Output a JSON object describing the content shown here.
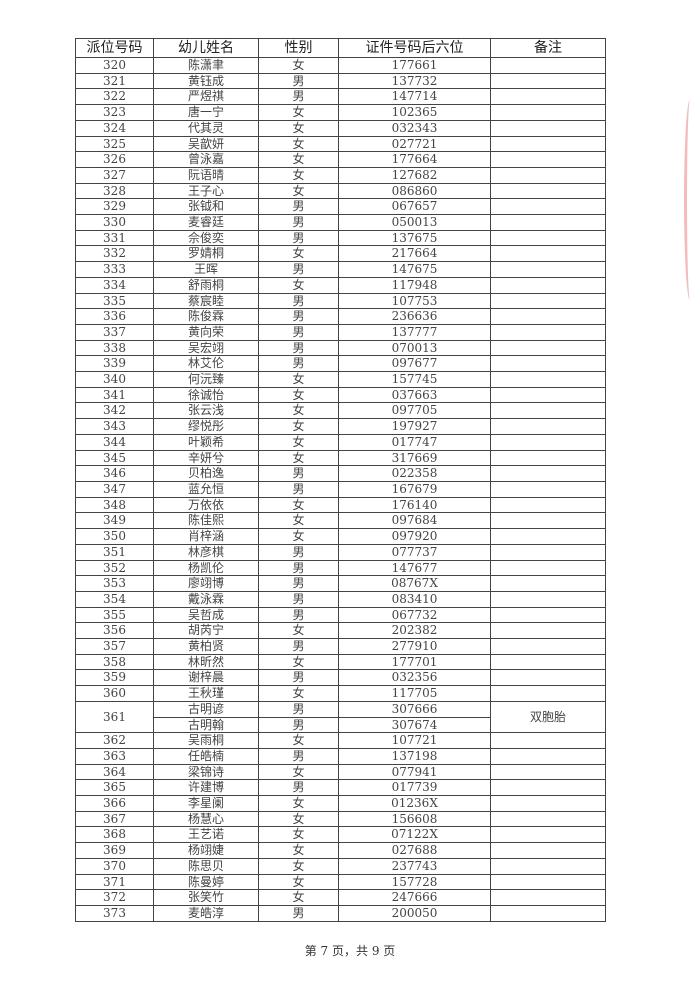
{
  "table": {
    "headers": [
      "派位号码",
      "幼儿姓名",
      "性别",
      "证件号码后六位",
      "备注"
    ],
    "rows": [
      {
        "no": "320",
        "kids": [
          [
            "陈潇聿",
            "女",
            "177661"
          ]
        ]
      },
      {
        "no": "321",
        "kids": [
          [
            "黄钰成",
            "男",
            "137732"
          ]
        ]
      },
      {
        "no": "322",
        "kids": [
          [
            "严煜祺",
            "男",
            "147714"
          ]
        ]
      },
      {
        "no": "323",
        "kids": [
          [
            "唐一宁",
            "女",
            "102365"
          ]
        ]
      },
      {
        "no": "324",
        "kids": [
          [
            "代其灵",
            "女",
            "032343"
          ]
        ]
      },
      {
        "no": "325",
        "kids": [
          [
            "吴歆妍",
            "女",
            "027721"
          ]
        ]
      },
      {
        "no": "326",
        "kids": [
          [
            "曾泳嘉",
            "女",
            "177664"
          ]
        ]
      },
      {
        "no": "327",
        "kids": [
          [
            "阮语晴",
            "女",
            "127682"
          ]
        ]
      },
      {
        "no": "328",
        "kids": [
          [
            "王子心",
            "女",
            "086860"
          ]
        ]
      },
      {
        "no": "329",
        "kids": [
          [
            "张钺和",
            "男",
            "067657"
          ]
        ]
      },
      {
        "no": "330",
        "kids": [
          [
            "麦睿廷",
            "男",
            "050013"
          ]
        ]
      },
      {
        "no": "331",
        "kids": [
          [
            "佘俊奕",
            "男",
            "137675"
          ]
        ]
      },
      {
        "no": "332",
        "kids": [
          [
            "罗婧桐",
            "女",
            "217664"
          ]
        ]
      },
      {
        "no": "333",
        "kids": [
          [
            "王晖",
            "男",
            "147675"
          ]
        ]
      },
      {
        "no": "334",
        "kids": [
          [
            "舒雨桐",
            "女",
            "117948"
          ]
        ]
      },
      {
        "no": "335",
        "kids": [
          [
            "蔡宸睦",
            "男",
            "107753"
          ]
        ]
      },
      {
        "no": "336",
        "kids": [
          [
            "陈俊霖",
            "男",
            "236636"
          ]
        ]
      },
      {
        "no": "337",
        "kids": [
          [
            "黄向荣",
            "男",
            "137777"
          ]
        ]
      },
      {
        "no": "338",
        "kids": [
          [
            "吴宏翊",
            "男",
            "070013"
          ]
        ]
      },
      {
        "no": "339",
        "kids": [
          [
            "林艾伦",
            "男",
            "097677"
          ]
        ]
      },
      {
        "no": "340",
        "kids": [
          [
            "何沅臻",
            "女",
            "157745"
          ]
        ]
      },
      {
        "no": "341",
        "kids": [
          [
            "徐诚怡",
            "女",
            "037663"
          ]
        ]
      },
      {
        "no": "342",
        "kids": [
          [
            "张云浅",
            "女",
            "097705"
          ]
        ]
      },
      {
        "no": "343",
        "kids": [
          [
            "缪悦彤",
            "女",
            "197927"
          ]
        ]
      },
      {
        "no": "344",
        "kids": [
          [
            "叶颖希",
            "女",
            "017747"
          ]
        ]
      },
      {
        "no": "345",
        "kids": [
          [
            "辛妍兮",
            "女",
            "317669"
          ]
        ]
      },
      {
        "no": "346",
        "kids": [
          [
            "贝柏逸",
            "男",
            "022358"
          ]
        ]
      },
      {
        "no": "347",
        "kids": [
          [
            "蓝允恒",
            "男",
            "167679"
          ]
        ]
      },
      {
        "no": "348",
        "kids": [
          [
            "万依依",
            "女",
            "176140"
          ]
        ]
      },
      {
        "no": "349",
        "kids": [
          [
            "陈佳熙",
            "女",
            "097684"
          ]
        ]
      },
      {
        "no": "350",
        "kids": [
          [
            "肖梓涵",
            "女",
            "097920"
          ]
        ]
      },
      {
        "no": "351",
        "kids": [
          [
            "林彦棋",
            "男",
            "077737"
          ]
        ]
      },
      {
        "no": "352",
        "kids": [
          [
            "杨凯伦",
            "男",
            "147677"
          ]
        ]
      },
      {
        "no": "353",
        "kids": [
          [
            "廖翊博",
            "男",
            "08767X"
          ]
        ]
      },
      {
        "no": "354",
        "kids": [
          [
            "戴泳霖",
            "男",
            "083410"
          ]
        ]
      },
      {
        "no": "355",
        "kids": [
          [
            "吴哲成",
            "男",
            "067732"
          ]
        ]
      },
      {
        "no": "356",
        "kids": [
          [
            "胡芮宁",
            "女",
            "202382"
          ]
        ]
      },
      {
        "no": "357",
        "kids": [
          [
            "黄柏贤",
            "男",
            "277910"
          ]
        ]
      },
      {
        "no": "358",
        "kids": [
          [
            "林昕然",
            "女",
            "177701"
          ]
        ]
      },
      {
        "no": "359",
        "kids": [
          [
            "谢梓晨",
            "男",
            "032356"
          ]
        ]
      },
      {
        "no": "360",
        "kids": [
          [
            "王秋瑾",
            "女",
            "117705"
          ]
        ]
      },
      {
        "no": "361",
        "kids": [
          [
            "古明谚",
            "男",
            "307666"
          ],
          [
            "古明翰",
            "男",
            "307674"
          ]
        ],
        "note": "双胞胎"
      },
      {
        "no": "362",
        "kids": [
          [
            "吴雨桐",
            "女",
            "107721"
          ]
        ]
      },
      {
        "no": "363",
        "kids": [
          [
            "任皓楠",
            "男",
            "137198"
          ]
        ]
      },
      {
        "no": "364",
        "kids": [
          [
            "梁锦诗",
            "女",
            "077941"
          ]
        ]
      },
      {
        "no": "365",
        "kids": [
          [
            "许建博",
            "男",
            "017739"
          ]
        ]
      },
      {
        "no": "366",
        "kids": [
          [
            "李星阑",
            "女",
            "01236X"
          ]
        ]
      },
      {
        "no": "367",
        "kids": [
          [
            "杨慧心",
            "女",
            "156608"
          ]
        ]
      },
      {
        "no": "368",
        "kids": [
          [
            "王艺诺",
            "女",
            "07122X"
          ]
        ]
      },
      {
        "no": "369",
        "kids": [
          [
            "杨翊婕",
            "女",
            "027688"
          ]
        ]
      },
      {
        "no": "370",
        "kids": [
          [
            "陈思贝",
            "女",
            "237743"
          ]
        ]
      },
      {
        "no": "371",
        "kids": [
          [
            "陈曼婷",
            "女",
            "157728"
          ]
        ]
      },
      {
        "no": "372",
        "kids": [
          [
            "张笑竹",
            "女",
            "247666"
          ]
        ]
      },
      {
        "no": "373",
        "kids": [
          [
            "麦皓淳",
            "男",
            "200050"
          ]
        ]
      }
    ]
  },
  "footer": "第 7 页，共 9 页",
  "colors": {
    "stamp": "#dc3c3c"
  }
}
